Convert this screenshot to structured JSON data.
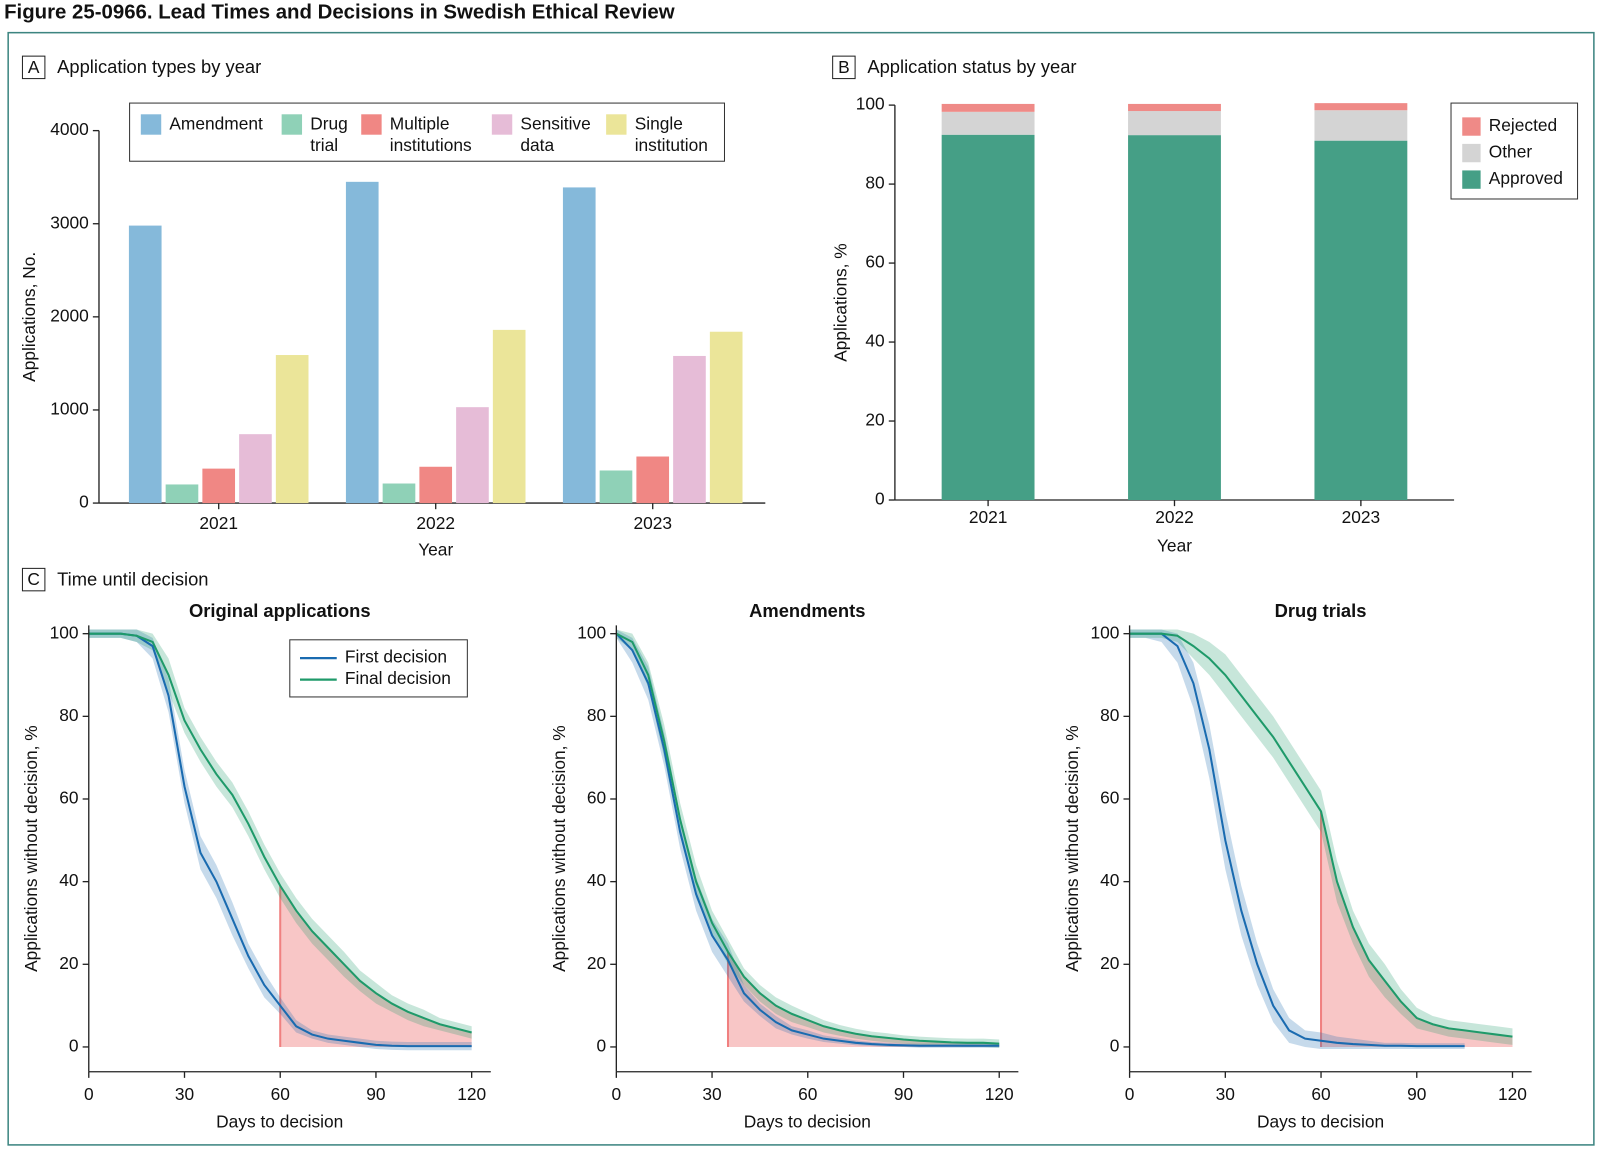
{
  "title": "Figure 25-0966. Lead Times and Decisions in Swedish Ethical Review",
  "panels": [
    {
      "label": "A",
      "title": "Application types by year"
    },
    {
      "label": "B",
      "title": "Application status by year"
    },
    {
      "label": "C",
      "title": "Time until decision"
    }
  ],
  "chart_data": [
    {
      "type": "bar",
      "categories": [
        "2021",
        "2022",
        "2023"
      ],
      "series": [
        {
          "name": "Amendment",
          "color": "#85b9da",
          "values": [
            2980,
            3450,
            3390
          ]
        },
        {
          "name": "Drug trial",
          "color": "#8fd1b7",
          "values": [
            200,
            210,
            350
          ]
        },
        {
          "name": "Multiple institutions",
          "color": "#f08784",
          "values": [
            370,
            390,
            500
          ]
        },
        {
          "name": "Sensitive data",
          "color": "#e6bcd7",
          "values": [
            740,
            1030,
            1580
          ]
        },
        {
          "name": "Single institution",
          "color": "#ebe599",
          "values": [
            1590,
            1860,
            1840
          ]
        }
      ],
      "ylim": [
        0,
        4000
      ],
      "yticks": [
        0,
        1000,
        2000,
        3000,
        4000
      ],
      "xlabel": "Year",
      "ylabel": "Applications, No.",
      "legend": "top"
    },
    {
      "type": "stacked_bar",
      "categories": [
        "2021",
        "2022",
        "2023"
      ],
      "series": [
        {
          "name": "Approved",
          "color": "#459f86",
          "values": [
            92.5,
            92.4,
            91.0
          ]
        },
        {
          "name": "Other",
          "color": "#d4d4d4",
          "values": [
            5.8,
            6.1,
            7.7
          ]
        },
        {
          "name": "Rejected",
          "color": "#ef8a87",
          "values": [
            2.0,
            1.8,
            1.8
          ]
        }
      ],
      "ylim": [
        0,
        100
      ],
      "yticks": [
        0,
        20,
        40,
        60,
        80,
        100
      ],
      "xlabel": "Year",
      "ylabel": "Applications, %",
      "legend": "right"
    },
    {
      "type": "line",
      "title": "Original applications",
      "x": [
        0,
        5,
        10,
        15,
        20,
        25,
        30,
        35,
        40,
        45,
        50,
        55,
        60,
        65,
        70,
        75,
        80,
        85,
        90,
        95,
        100,
        105,
        110,
        115,
        120,
        125
      ],
      "series": [
        {
          "name": "First decision",
          "color": "#1a6bb0",
          "values": [
            100,
            100,
            100,
            99.5,
            97,
            85,
            63,
            47,
            40,
            31,
            22,
            15,
            10,
            5,
            3,
            2,
            1.5,
            1,
            0.5,
            0.3,
            0.2,
            0.2,
            0.2,
            0.2,
            0.2,
            null
          ],
          "lower": [
            99,
            99,
            99,
            98,
            94,
            81,
            59,
            43,
            36,
            27,
            19,
            12,
            8,
            3.5,
            2,
            1,
            0.5,
            0,
            -0.5,
            -0.7,
            -0.8,
            -0.8,
            -0.8,
            -0.8,
            -0.8,
            null
          ],
          "upper": [
            101,
            101,
            101,
            101,
            99,
            89,
            67,
            51,
            44,
            35,
            25,
            18,
            12,
            6.5,
            4,
            3,
            2.5,
            2,
            1.5,
            1.3,
            1.2,
            1.2,
            1.2,
            1.2,
            1.2,
            null
          ]
        },
        {
          "name": "Final decision",
          "color": "#1f9a6a",
          "values": [
            100,
            100,
            100,
            99.5,
            98,
            90,
            79,
            72,
            66,
            61,
            54,
            46,
            39,
            33,
            28,
            24,
            20,
            16,
            13,
            10.5,
            8.5,
            7,
            5.5,
            4.5,
            3.5,
            null
          ],
          "lower": [
            99,
            99,
            99,
            98,
            96,
            86,
            76,
            69,
            63,
            58,
            51,
            43,
            36,
            30,
            25,
            21,
            17,
            13.5,
            10.5,
            8.5,
            6.5,
            5,
            4,
            3,
            2,
            null
          ],
          "upper": [
            101,
            101,
            101,
            101,
            100,
            94,
            82,
            75,
            69,
            64,
            57,
            49,
            42,
            36,
            31,
            27,
            23,
            18.5,
            15.5,
            12.5,
            10.5,
            9,
            7,
            6,
            5,
            null
          ]
        }
      ],
      "highlight_x": 60,
      "highlight_color": "#f08080",
      "xlim": [
        0,
        126
      ],
      "ylim": [
        -6,
        102
      ],
      "xticks": [
        0,
        30,
        60,
        90,
        120
      ],
      "yticks": [
        0,
        20,
        40,
        60,
        80,
        100
      ],
      "xlabel": "Days to decision",
      "ylabel": "Applications without decision, %",
      "legend": "upper right"
    },
    {
      "type": "line",
      "title": "Amendments",
      "x": [
        0,
        5,
        10,
        15,
        20,
        25,
        30,
        35,
        40,
        45,
        50,
        55,
        60,
        65,
        70,
        75,
        80,
        85,
        90,
        95,
        100,
        105,
        110,
        115,
        120,
        125
      ],
      "series": [
        {
          "color": "#1a6bb0",
          "values": [
            100,
            96,
            88,
            72,
            52,
            37,
            27,
            21,
            13,
            9,
            6,
            4,
            3,
            2,
            1.5,
            1,
            0.7,
            0.5,
            0.4,
            0.3,
            0.3,
            0.3,
            0.3,
            0.3,
            0.3,
            null
          ],
          "lower": [
            99,
            93,
            84,
            68,
            48,
            33,
            23,
            17,
            11,
            7.5,
            4.5,
            3,
            2,
            1.2,
            0.8,
            0.4,
            0.2,
            0,
            0,
            -0.2,
            -0.2,
            -0.2,
            -0.2,
            -0.2,
            -0.2,
            null
          ],
          "upper": [
            101,
            99,
            92,
            76,
            56,
            41,
            31,
            25,
            15,
            10.5,
            7.5,
            5,
            4,
            2.8,
            2.2,
            1.6,
            1.2,
            1,
            0.8,
            0.8,
            0.8,
            0.8,
            0.8,
            0.8,
            0.8,
            null
          ]
        },
        {
          "color": "#1f9a6a",
          "values": [
            100,
            98,
            90,
            74,
            55,
            40,
            30,
            23,
            17,
            13,
            10,
            8,
            6.5,
            5,
            4,
            3.2,
            2.6,
            2.2,
            1.8,
            1.5,
            1.3,
            1.1,
            1,
            1,
            0.8,
            null
          ],
          "lower": [
            99,
            96,
            87,
            70,
            51,
            36,
            27,
            20,
            15,
            11,
            8,
            6,
            4.8,
            3.5,
            2.7,
            2,
            1.5,
            1.1,
            0.8,
            0.5,
            0.3,
            0.1,
            0,
            0,
            -0.2,
            null
          ],
          "upper": [
            101,
            100,
            93,
            78,
            59,
            44,
            33,
            26,
            19,
            15,
            12,
            10,
            8.2,
            6.5,
            5.3,
            4.4,
            3.7,
            3.3,
            2.8,
            2.5,
            2.3,
            2.1,
            2,
            2,
            1.8,
            null
          ]
        }
      ],
      "highlight_x": 35,
      "highlight_color": "#f08080",
      "xlim": [
        0,
        126
      ],
      "ylim": [
        -6,
        102
      ],
      "xticks": [
        0,
        30,
        60,
        90,
        120
      ],
      "yticks": [
        0,
        20,
        40,
        60,
        80,
        100
      ],
      "xlabel": "Days to decision",
      "ylabel": "Applications without decision, %"
    },
    {
      "type": "line",
      "title": "Drug trials",
      "x": [
        0,
        5,
        10,
        15,
        20,
        25,
        30,
        35,
        40,
        45,
        50,
        55,
        60,
        65,
        70,
        75,
        80,
        85,
        90,
        95,
        100,
        105,
        110,
        115,
        120,
        125
      ],
      "series": [
        {
          "color": "#1a6bb0",
          "values": [
            100,
            100,
            100,
            97,
            88,
            72,
            50,
            33,
            20,
            10,
            4,
            2,
            1.5,
            1,
            0.7,
            0.5,
            0.3,
            0.3,
            0.2,
            0.2,
            0.2,
            0.2,
            null,
            null,
            null,
            null
          ],
          "lower": [
            99,
            99,
            98,
            93,
            82,
            65,
            43,
            27,
            15,
            6,
            1,
            0,
            -0.5,
            -0.5,
            -0.5,
            -0.5,
            -0.5,
            -0.5,
            -0.5,
            -0.5,
            -0.5,
            -0.5,
            null,
            null,
            null,
            null
          ],
          "upper": [
            101,
            101,
            101,
            100,
            93,
            78,
            57,
            39,
            25,
            14,
            7,
            4,
            3.5,
            2.5,
            2,
            1.5,
            1,
            1,
            0.9,
            0.9,
            0.9,
            0.9,
            null,
            null,
            null,
            null
          ]
        },
        {
          "color": "#1f9a6a",
          "values": [
            100,
            100,
            100,
            99.5,
            97,
            94,
            90,
            85,
            80,
            75,
            69,
            63,
            57,
            40,
            29,
            21,
            16,
            11,
            7,
            5.5,
            4.5,
            4,
            3.5,
            3,
            2.5,
            null
          ],
          "lower": [
            99,
            99,
            99,
            98,
            94,
            90,
            85,
            80,
            75,
            70,
            64,
            58,
            52,
            35,
            25,
            17,
            12,
            8,
            4.5,
            3.5,
            2.5,
            2,
            1.5,
            1,
            0.5,
            null
          ],
          "upper": [
            101,
            101,
            101,
            101,
            100,
            98,
            95,
            90,
            85,
            80,
            74,
            68,
            62,
            45,
            33,
            25,
            20,
            14,
            9.5,
            7.5,
            6.5,
            6,
            5.5,
            5,
            4.5,
            null
          ]
        }
      ],
      "highlight_x": 60,
      "highlight_color": "#f08080",
      "xlim": [
        0,
        126
      ],
      "ylim": [
        -6,
        102
      ],
      "xticks": [
        0,
        30,
        60,
        90,
        120
      ],
      "yticks": [
        0,
        20,
        40,
        60,
        80,
        100
      ],
      "xlabel": "Days to decision",
      "ylabel": "Applications without decision, %"
    }
  ]
}
